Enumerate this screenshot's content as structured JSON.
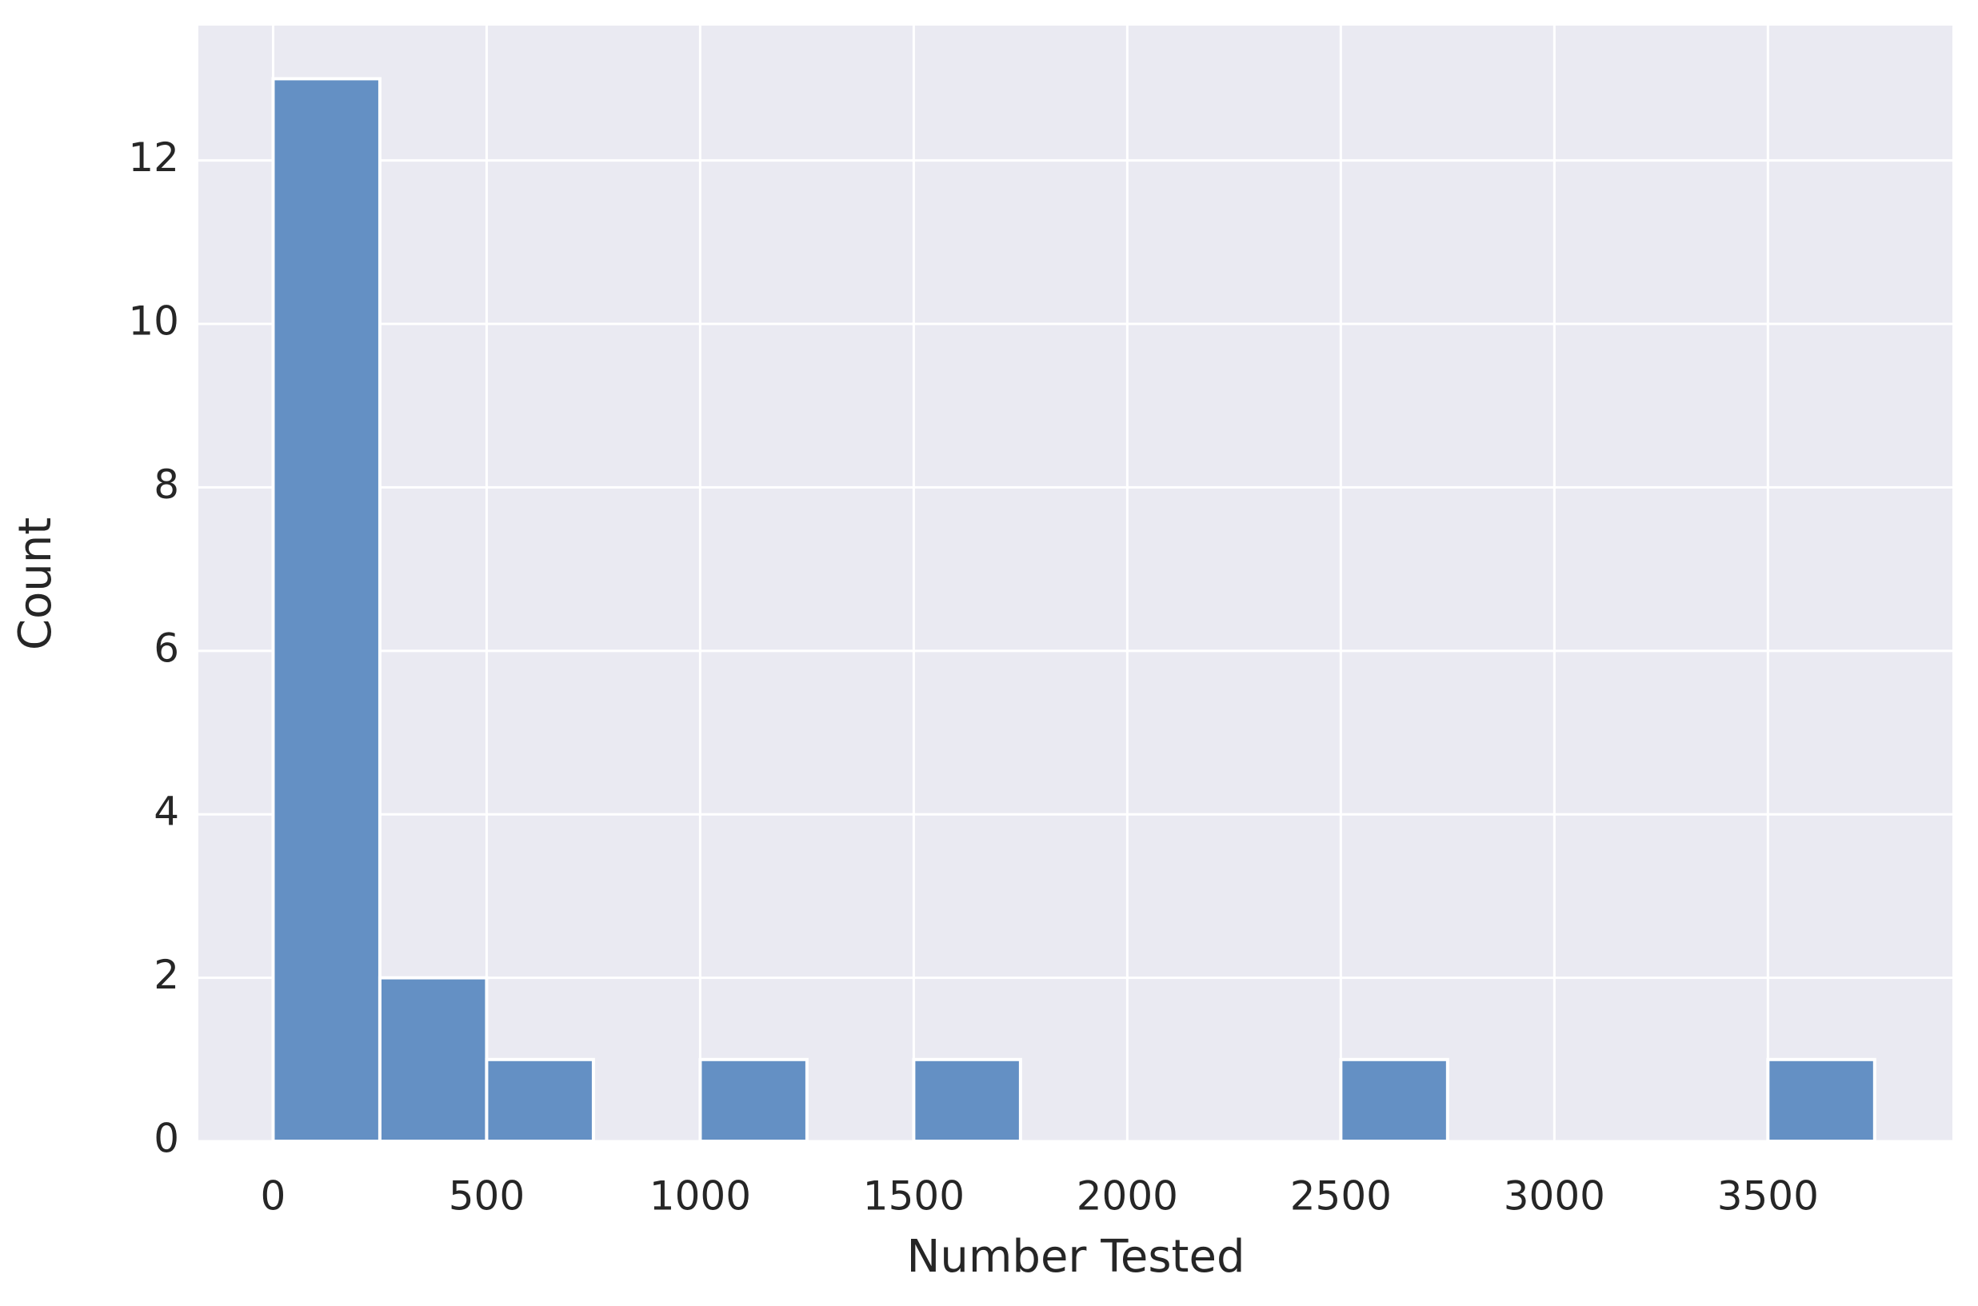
{
  "chart_data": {
    "type": "histogram",
    "xlabel": "Number Tested",
    "ylabel": "Count",
    "bins": [
      0,
      250,
      500,
      750,
      1000,
      1250,
      1500,
      1750,
      2000,
      2250,
      2500,
      2750,
      3000,
      3250,
      3500,
      3750
    ],
    "values": [
      13,
      2,
      1,
      0,
      1,
      0,
      1,
      0,
      0,
      0,
      1,
      0,
      0,
      0,
      1
    ],
    "color": "#6490c4",
    "xlim": [
      -175,
      3932
    ],
    "ylim": [
      0,
      13.65
    ],
    "xticks": [
      0,
      500,
      1000,
      1500,
      2000,
      2500,
      3000,
      3500
    ],
    "yticks": [
      0,
      2,
      4,
      6,
      8,
      10,
      12
    ],
    "grid": true
  }
}
